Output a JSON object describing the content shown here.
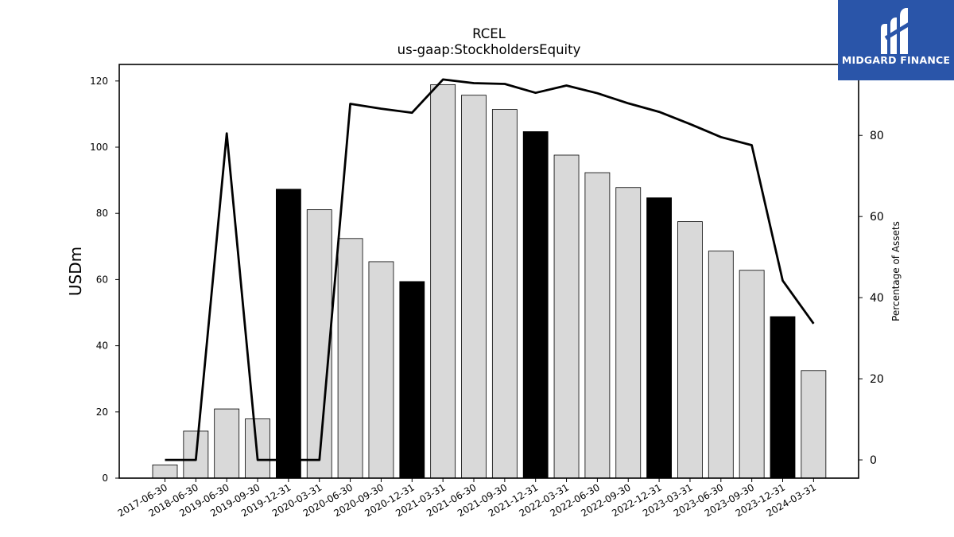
{
  "chart_data": {
    "type": "bar",
    "title": "RCEL",
    "subtitle": "us-gaap:StockholdersEquity",
    "ylabel": "USDm",
    "y2label": "Percentage of Assets",
    "categories": [
      "2017-06-30",
      "2018-06-30",
      "2019-06-30",
      "2019-09-30",
      "2019-12-31",
      "2020-03-31",
      "2020-06-30",
      "2020-09-30",
      "2020-12-31",
      "2021-03-31",
      "2021-06-30",
      "2021-09-30",
      "2021-12-31",
      "2022-03-31",
      "2022-06-30",
      "2022-09-30",
      "2022-12-31",
      "2023-03-31",
      "2023-06-30",
      "2023-09-30",
      "2023-12-31",
      "2024-03-31"
    ],
    "series": [
      {
        "axis": "left",
        "type": "bar",
        "values": [
          4.0,
          14.2,
          20.9,
          17.9,
          87.3,
          81.1,
          72.4,
          65.4,
          59.4,
          118.9,
          115.7,
          111.4,
          104.7,
          97.6,
          92.3,
          87.8,
          84.7,
          77.5,
          68.6,
          62.8,
          48.8,
          32.5
        ],
        "highlight": [
          false,
          false,
          false,
          false,
          true,
          false,
          false,
          false,
          true,
          false,
          false,
          false,
          true,
          false,
          false,
          false,
          true,
          false,
          false,
          false,
          true,
          false
        ]
      },
      {
        "axis": "right",
        "type": "line",
        "values": [
          0.0,
          0.0,
          80.5,
          0.0,
          0.0,
          0.0,
          87.8,
          86.6,
          85.6,
          93.8,
          92.9,
          92.7,
          90.5,
          92.3,
          90.4,
          87.9,
          85.8,
          82.8,
          79.6,
          77.6,
          44.2,
          33.6
        ]
      }
    ],
    "ylim": [
      0,
      125
    ],
    "y2lim": [
      -4.5,
      97.5
    ],
    "yticks": [
      0,
      20,
      40,
      60,
      80,
      100,
      120
    ],
    "y2ticks": [
      0,
      20,
      40,
      60,
      80
    ],
    "grid": false,
    "colors": {
      "bar": "#d9d9d9",
      "bar_highlight": "#000000",
      "line": "#000000",
      "edge": "#000000"
    }
  },
  "logo": {
    "text": "MIDGARD FINANCE",
    "background": "#2a55a9"
  }
}
